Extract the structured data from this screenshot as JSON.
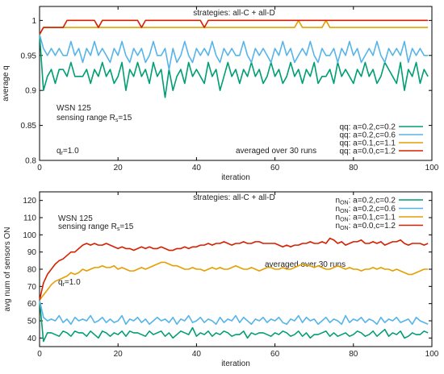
{
  "chart_data": [
    {
      "type": "line",
      "title": "strategies: all-C + all-D",
      "xlabel": "iteration",
      "ylabel": "average q",
      "xlim": [
        0,
        100
      ],
      "ylim": [
        0.8,
        1.02
      ],
      "xticks": [
        "0",
        "20",
        "40",
        "60",
        "80",
        "100"
      ],
      "yticks": [
        "0.8",
        "0.85",
        "0.9",
        "0.95",
        "1"
      ],
      "grid": false,
      "legend_position": "bottom-right",
      "annotations": {
        "wsn": "WSN 125",
        "sensing_prefix": "sensing range R",
        "sensing_sub": "s",
        "sensing_suffix": "=15",
        "qr_prefix": "q",
        "qr_sub": "r",
        "qr_suffix": "=1.0",
        "averaged": "averaged over 30 runs"
      },
      "legend_prefix": "q",
      "legend_sub": "",
      "series": [
        {
          "name": "q: a=0.2,c=0.2",
          "color": "#009e73",
          "x0": 0,
          "dx": 1,
          "values": [
            0.98,
            0.9,
            0.92,
            0.93,
            0.91,
            0.93,
            0.93,
            0.92,
            0.94,
            0.92,
            0.92,
            0.92,
            0.93,
            0.91,
            0.93,
            0.92,
            0.94,
            0.92,
            0.93,
            0.91,
            0.92,
            0.94,
            0.9,
            0.93,
            0.92,
            0.94,
            0.92,
            0.93,
            0.91,
            0.94,
            0.92,
            0.93,
            0.89,
            0.93,
            0.9,
            0.92,
            0.93,
            0.91,
            0.94,
            0.92,
            0.93,
            0.92,
            0.91,
            0.94,
            0.92,
            0.93,
            0.9,
            0.92,
            0.94,
            0.92,
            0.93,
            0.91,
            0.93,
            0.92,
            0.94,
            0.92,
            0.93,
            0.91,
            0.92,
            0.94,
            0.92,
            0.93,
            0.91,
            0.92,
            0.94,
            0.92,
            0.93,
            0.91,
            0.93,
            0.92,
            0.94,
            0.91,
            0.92,
            0.92,
            0.93,
            0.91,
            0.94,
            0.92,
            0.93,
            0.92,
            0.91,
            0.93,
            0.92,
            0.94,
            0.92,
            0.93,
            0.91,
            0.92,
            0.94,
            0.93,
            0.92,
            0.91,
            0.94,
            0.9,
            0.93,
            0.92,
            0.94,
            0.91,
            0.93,
            0.92
          ]
        },
        {
          "name": "q: a=0.2,c=0.6",
          "color": "#56b4e9",
          "x0": 0,
          "dx": 1,
          "values": [
            0.98,
            0.96,
            0.95,
            0.96,
            0.95,
            0.96,
            0.95,
            0.95,
            0.97,
            0.95,
            0.96,
            0.94,
            0.96,
            0.95,
            0.97,
            0.95,
            0.96,
            0.95,
            0.94,
            0.96,
            0.95,
            0.97,
            0.95,
            0.94,
            0.96,
            0.95,
            0.96,
            0.94,
            0.95,
            0.97,
            0.95,
            0.95,
            0.96,
            0.93,
            0.96,
            0.94,
            0.95,
            0.97,
            0.95,
            0.94,
            0.96,
            0.95,
            0.96,
            0.95,
            0.97,
            0.95,
            0.94,
            0.96,
            0.95,
            0.96,
            0.95,
            0.95,
            0.97,
            0.95,
            0.94,
            0.96,
            0.95,
            0.96,
            0.95,
            0.94,
            0.96,
            0.95,
            0.97,
            0.95,
            0.96,
            0.94,
            0.95,
            0.96,
            0.95,
            0.97,
            0.95,
            0.94,
            0.96,
            0.95,
            0.95,
            0.96,
            0.94,
            0.96,
            0.95,
            0.97,
            0.95,
            0.96,
            0.94,
            0.95,
            0.96,
            0.95,
            0.97,
            0.95,
            0.94,
            0.96,
            0.95,
            0.96,
            0.95,
            0.97,
            0.94,
            0.96,
            0.95,
            0.96,
            0.95,
            0.95
          ]
        },
        {
          "name": "q: a=0.1,c=1.1",
          "color": "#e69f00",
          "x0": 0,
          "dx": 1,
          "values": [
            0.98,
            0.99,
            0.99,
            0.99,
            0.99,
            0.99,
            0.99,
            0.99,
            0.99,
            0.99,
            0.99,
            0.99,
            0.99,
            0.99,
            0.99,
            0.99,
            0.99,
            0.99,
            0.99,
            0.99,
            0.99,
            0.99,
            0.99,
            0.99,
            0.99,
            0.99,
            0.99,
            0.99,
            0.99,
            0.99,
            0.99,
            0.99,
            0.99,
            0.99,
            0.99,
            0.99,
            0.99,
            0.99,
            0.99,
            0.99,
            0.99,
            0.99,
            0.99,
            0.99,
            0.99,
            0.99,
            0.99,
            0.99,
            0.99,
            0.99,
            0.99,
            0.99,
            0.99,
            0.99,
            0.99,
            0.99,
            0.99,
            0.99,
            0.99,
            0.99,
            0.99,
            0.99,
            0.99,
            0.99,
            0.99,
            0.99,
            1.0,
            0.99,
            0.99,
            0.99,
            0.99,
            0.99,
            0.99,
            1.0,
            0.99,
            0.99,
            0.99,
            0.99,
            0.99,
            0.99,
            0.99,
            0.99,
            0.99,
            0.99,
            0.99,
            0.99,
            0.99,
            0.99,
            0.99,
            0.99,
            0.99,
            0.99,
            0.99,
            0.99,
            0.99,
            0.99,
            0.99,
            0.99,
            0.99,
            0.99
          ]
        },
        {
          "name": "q: a=0.0,c=1.2",
          "color": "#d62000",
          "x0": 0,
          "dx": 1,
          "values": [
            0.98,
            0.99,
            0.99,
            0.99,
            0.99,
            0.99,
            0.99,
            1.0,
            1.0,
            1.0,
            1.0,
            1.0,
            1.0,
            1.0,
            1.0,
            0.99,
            1.0,
            1.0,
            1.0,
            1.0,
            1.0,
            1.0,
            1.0,
            1.0,
            1.0,
            1.0,
            0.99,
            1.0,
            1.0,
            1.0,
            1.0,
            1.0,
            1.0,
            1.0,
            1.0,
            1.0,
            1.0,
            1.0,
            1.0,
            1.0,
            1.0,
            1.0,
            0.99,
            1.0,
            1.0,
            1.0,
            1.0,
            1.0,
            1.0,
            1.0,
            1.0,
            1.0,
            1.0,
            1.0,
            1.0,
            1.0,
            1.0,
            1.0,
            1.0,
            1.0,
            1.0,
            1.0,
            1.0,
            1.0,
            1.0,
            1.0,
            1.0,
            1.0,
            1.0,
            1.0,
            1.0,
            1.0,
            1.0,
            1.0,
            1.0,
            1.0,
            1.0,
            1.0,
            1.0,
            1.0,
            1.0,
            1.0,
            1.0,
            1.0,
            1.0,
            1.0,
            1.0,
            1.0,
            1.0,
            1.0,
            1.0,
            1.0,
            1.0,
            1.0,
            1.0,
            1.0,
            1.0,
            1.0,
            1.0,
            1.0
          ]
        }
      ]
    },
    {
      "type": "line",
      "title": "strategies: all-C + all-D",
      "xlabel": "iteration",
      "ylabel": "avg num of sensors ON",
      "xlim": [
        0,
        100
      ],
      "ylim": [
        35,
        125
      ],
      "xticks": [
        "0",
        "20",
        "40",
        "60",
        "80",
        "100"
      ],
      "yticks": [
        "40",
        "50",
        "60",
        "70",
        "80",
        "90",
        "100",
        "110",
        "120"
      ],
      "grid": false,
      "legend_position": "top-right",
      "annotations": {
        "wsn": "WSN 125",
        "sensing_prefix": "sensing range R",
        "sensing_sub": "s",
        "sensing_suffix": "=15",
        "qr_prefix": "q",
        "qr_sub": "r",
        "qr_suffix": "=1.0",
        "averaged": "averaged over 30 runs"
      },
      "legend_prefix": "n",
      "legend_sub": "ON",
      "series": [
        {
          "name": ": a=0.2,c=0.2",
          "color": "#009e73",
          "x0": 0,
          "dx": 1,
          "values": [
            62,
            38,
            43,
            43,
            42,
            41,
            44,
            43,
            41,
            44,
            43,
            43,
            41,
            44,
            42,
            40,
            44,
            43,
            41,
            43,
            42,
            44,
            41,
            44,
            43,
            43,
            42,
            41,
            44,
            42,
            43,
            44,
            41,
            43,
            40,
            42,
            44,
            43,
            42,
            46,
            41,
            43,
            42,
            44,
            41,
            43,
            42,
            44,
            43,
            41,
            42,
            42,
            44,
            40,
            43,
            42,
            43,
            43,
            42,
            41,
            43,
            42,
            44,
            43,
            41,
            42,
            44,
            41,
            43,
            40,
            42,
            42,
            43,
            44,
            41,
            43,
            41,
            42,
            43,
            41,
            42,
            44,
            43,
            41,
            42,
            44,
            41,
            43,
            45,
            41,
            43,
            42,
            44,
            40,
            41,
            43,
            42,
            42,
            44,
            43
          ]
        },
        {
          "name": ": a=0.2,c=0.6",
          "color": "#56b4e9",
          "x0": 0,
          "dx": 1,
          "values": [
            62,
            52,
            50,
            51,
            50,
            53,
            49,
            51,
            48,
            52,
            50,
            51,
            50,
            53,
            49,
            50,
            52,
            49,
            51,
            49,
            50,
            53,
            48,
            51,
            50,
            52,
            49,
            51,
            48,
            50,
            52,
            50,
            51,
            49,
            52,
            48,
            51,
            50,
            53,
            49,
            50,
            52,
            49,
            51,
            50,
            48,
            52,
            49,
            51,
            50,
            53,
            49,
            52,
            50,
            48,
            51,
            50,
            52,
            49,
            51,
            50,
            52,
            49,
            48,
            51,
            50,
            53,
            49,
            52,
            50,
            51,
            48,
            50,
            52,
            49,
            51,
            50,
            48,
            53,
            49,
            51,
            50,
            52,
            49,
            51,
            50,
            48,
            52,
            49,
            51,
            50,
            52,
            49,
            50,
            51,
            48,
            52,
            50,
            49,
            48
          ]
        },
        {
          "name": ": a=0.1,c=1.1",
          "color": "#e69f00",
          "x0": 0,
          "dx": 1,
          "values": [
            62,
            65,
            68,
            71,
            73,
            74,
            75,
            76,
            78,
            77,
            78,
            80,
            79,
            80,
            81,
            81,
            82,
            81,
            81,
            82,
            80,
            81,
            80,
            79,
            79,
            80,
            81,
            80,
            81,
            82,
            83,
            84,
            84,
            83,
            82,
            82,
            81,
            80,
            80,
            81,
            80,
            80,
            79,
            80,
            81,
            80,
            81,
            80,
            80,
            81,
            82,
            81,
            80,
            80,
            81,
            80,
            79,
            80,
            81,
            81,
            80,
            80,
            81,
            80,
            80,
            81,
            82,
            83,
            82,
            82,
            81,
            82,
            81,
            80,
            80,
            81,
            82,
            81,
            80,
            81,
            80,
            80,
            79,
            80,
            80,
            81,
            80,
            81,
            80,
            80,
            79,
            80,
            79,
            78,
            77,
            77,
            78,
            79,
            80,
            80
          ]
        },
        {
          "name": ": a=0.0,c=1.2",
          "color": "#d62000",
          "x0": 0,
          "dx": 1,
          "values": [
            62,
            72,
            77,
            80,
            83,
            85,
            86,
            88,
            90,
            90,
            92,
            94,
            95,
            94,
            95,
            94,
            94,
            95,
            94,
            93,
            92,
            93,
            92,
            92,
            91,
            92,
            93,
            92,
            93,
            92,
            92,
            93,
            92,
            91,
            91,
            92,
            92,
            93,
            92,
            93,
            93,
            94,
            94,
            95,
            94,
            95,
            95,
            96,
            95,
            94,
            95,
            95,
            96,
            95,
            95,
            96,
            96,
            95,
            95,
            95,
            95,
            94,
            93,
            94,
            93,
            94,
            94,
            95,
            95,
            96,
            95,
            95,
            96,
            95,
            98,
            97,
            95,
            96,
            94,
            95,
            96,
            96,
            97,
            95,
            95,
            96,
            95,
            96,
            94,
            95,
            96,
            96,
            97,
            95,
            94,
            95,
            95,
            95,
            94,
            95
          ]
        }
      ]
    }
  ]
}
